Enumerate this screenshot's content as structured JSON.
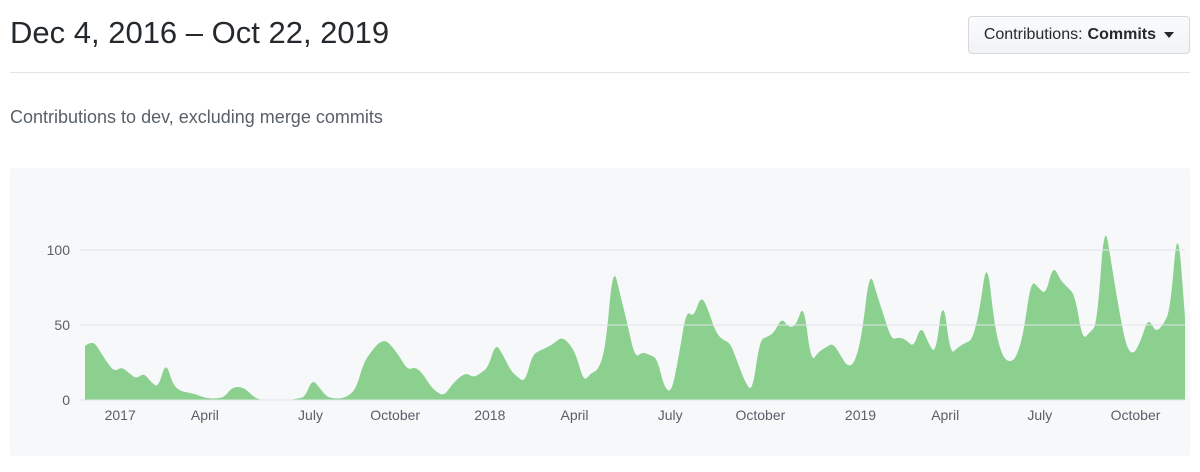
{
  "header": {
    "title": "Dec 4, 2016 – Oct 22, 2019",
    "dropdown": {
      "label": "Contributions:",
      "selected": "Commits",
      "icon": "caret-down-icon"
    }
  },
  "subtitle": "Contributions to dev, excluding merge commits",
  "colors": {
    "title_text": "#24292e",
    "muted_text": "#586069",
    "divider": "#e1e4e8",
    "button_bg": "#fafbfc",
    "button_border": "#d5d9dd",
    "chart_bg": "#f6f8fa",
    "area_green": "#8cd08f",
    "grid": "#e1e4e8"
  },
  "chart_data": {
    "type": "area",
    "title": "Contributions to dev, excluding merge commits",
    "x_range": [
      "Dec 4, 2016",
      "Oct 22, 2019"
    ],
    "x_unit": "week",
    "xlabel": "",
    "ylabel": "",
    "ylim": [
      0,
      130
    ],
    "y_ticks": [
      0,
      50,
      100
    ],
    "grid": true,
    "legend": "none",
    "area_color": "#8cd08f",
    "grid_color": "#e1e4e8",
    "x_ticks": [
      {
        "label": "2017",
        "pos": 0.032
      },
      {
        "label": "April",
        "pos": 0.109
      },
      {
        "label": "July",
        "pos": 0.205
      },
      {
        "label": "October",
        "pos": 0.282
      },
      {
        "label": "2018",
        "pos": 0.368
      },
      {
        "label": "April",
        "pos": 0.445
      },
      {
        "label": "July",
        "pos": 0.532
      },
      {
        "label": "October",
        "pos": 0.614
      },
      {
        "label": "2019",
        "pos": 0.705
      },
      {
        "label": "April",
        "pos": 0.782
      },
      {
        "label": "July",
        "pos": 0.868
      },
      {
        "label": "October",
        "pos": 0.955
      }
    ],
    "values": [
      36,
      40,
      33,
      25,
      19,
      22,
      18,
      14,
      18,
      12,
      8,
      26,
      10,
      6,
      5,
      4,
      2,
      1,
      1,
      2,
      8,
      9,
      7,
      2,
      0,
      0,
      0,
      0,
      0,
      1,
      2,
      14,
      8,
      2,
      1,
      1,
      3,
      8,
      25,
      32,
      38,
      40,
      35,
      28,
      20,
      22,
      18,
      10,
      5,
      3,
      10,
      15,
      18,
      15,
      18,
      22,
      38,
      30,
      20,
      15,
      12,
      30,
      33,
      35,
      38,
      42,
      38,
      30,
      12,
      18,
      20,
      35,
      90,
      70,
      50,
      28,
      32,
      30,
      28,
      8,
      5,
      30,
      60,
      55,
      70,
      60,
      45,
      40,
      38,
      25,
      12,
      5,
      40,
      42,
      45,
      55,
      48,
      50,
      65,
      25,
      32,
      35,
      38,
      30,
      22,
      25,
      45,
      87,
      70,
      55,
      40,
      42,
      40,
      35,
      50,
      38,
      30,
      70,
      30,
      35,
      38,
      40,
      60,
      95,
      50,
      30,
      25,
      28,
      45,
      80,
      75,
      70,
      90,
      80,
      75,
      70,
      40,
      45,
      50,
      120,
      90,
      60,
      35,
      30,
      40,
      55,
      45,
      50,
      60,
      120,
      55
    ]
  }
}
